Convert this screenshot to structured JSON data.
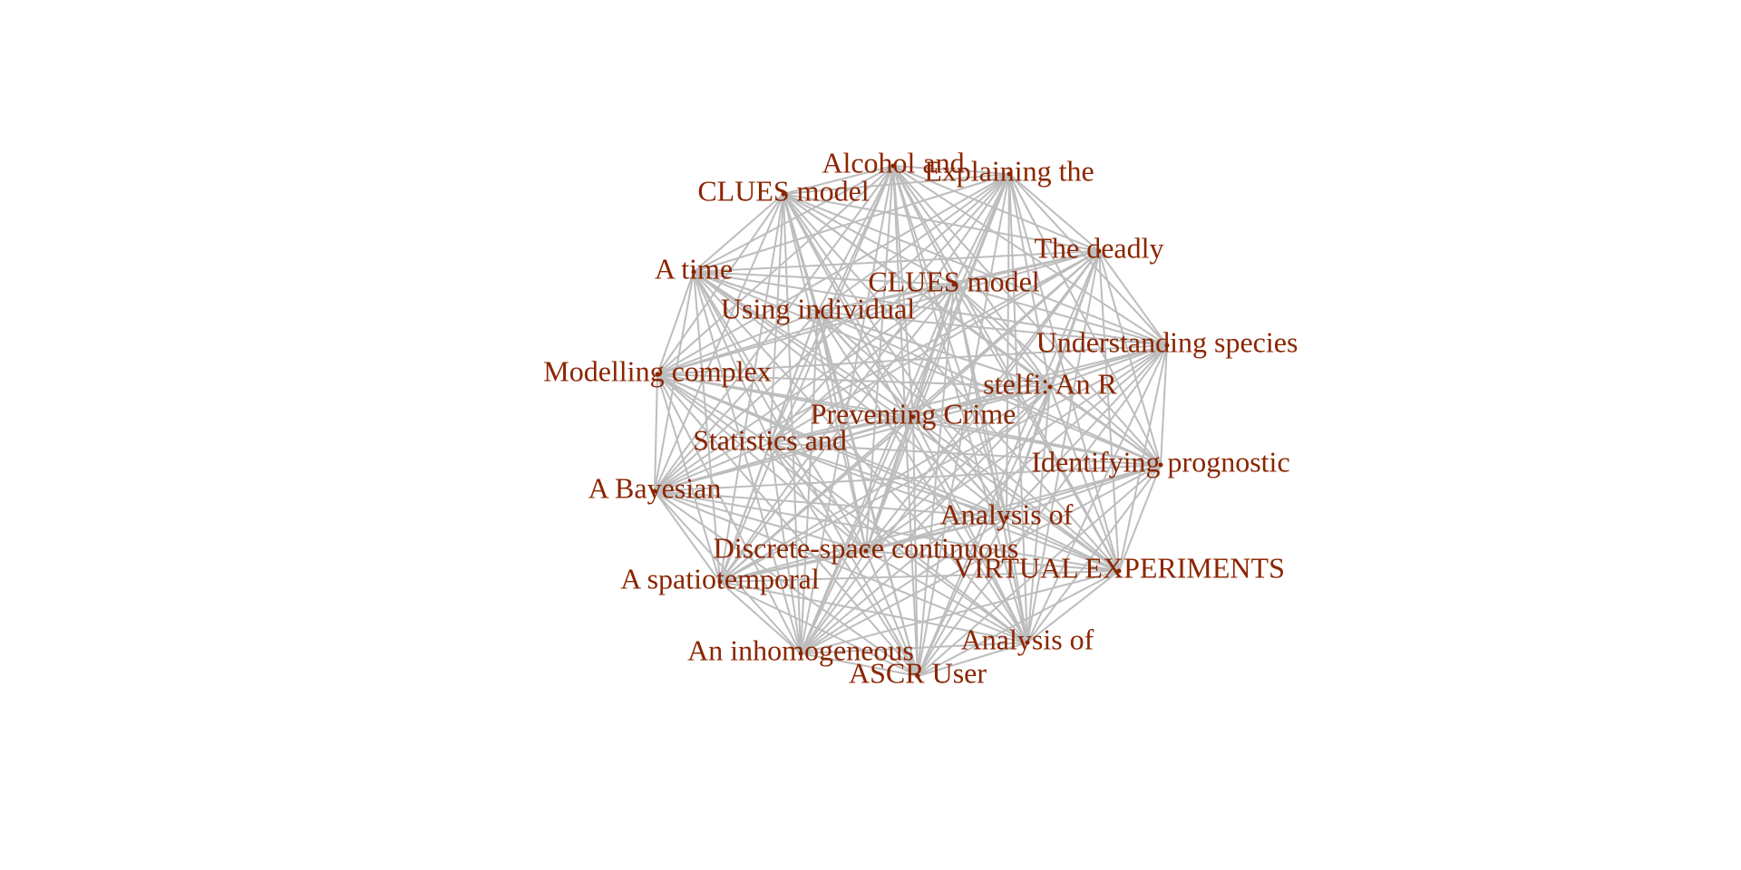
{
  "graph": {
    "label_color": "#8b2500",
    "edge_color": "#bdbdbd",
    "layout": "complete-graph",
    "nodes": [
      {
        "id": "n01",
        "label": "Alcohol and"
      },
      {
        "id": "n02",
        "label": "Explaining the"
      },
      {
        "id": "n03",
        "label": "CLUES model"
      },
      {
        "id": "n04",
        "label": "The deadly"
      },
      {
        "id": "n05",
        "label": "A time"
      },
      {
        "id": "n06",
        "label": "CLUES model"
      },
      {
        "id": "n07",
        "label": "Using individual"
      },
      {
        "id": "n08",
        "label": "Understanding species"
      },
      {
        "id": "n09",
        "label": "Modelling complex"
      },
      {
        "id": "n10",
        "label": "stelfi: An R"
      },
      {
        "id": "n11",
        "label": "Preventing Crime"
      },
      {
        "id": "n12",
        "label": "Statistics and"
      },
      {
        "id": "n13",
        "label": "Identifying prognostic"
      },
      {
        "id": "n14",
        "label": "A Bayesian"
      },
      {
        "id": "n15",
        "label": "Analysis of"
      },
      {
        "id": "n16",
        "label": "Discrete-space continuous"
      },
      {
        "id": "n17",
        "label": "VIRTUAL EXPERIMENTS"
      },
      {
        "id": "n18",
        "label": "A spatiotemporal"
      },
      {
        "id": "n19",
        "label": "Analysis of"
      },
      {
        "id": "n20",
        "label": "An inhomogeneous"
      },
      {
        "id": "n21",
        "label": "ASCR User"
      }
    ]
  }
}
